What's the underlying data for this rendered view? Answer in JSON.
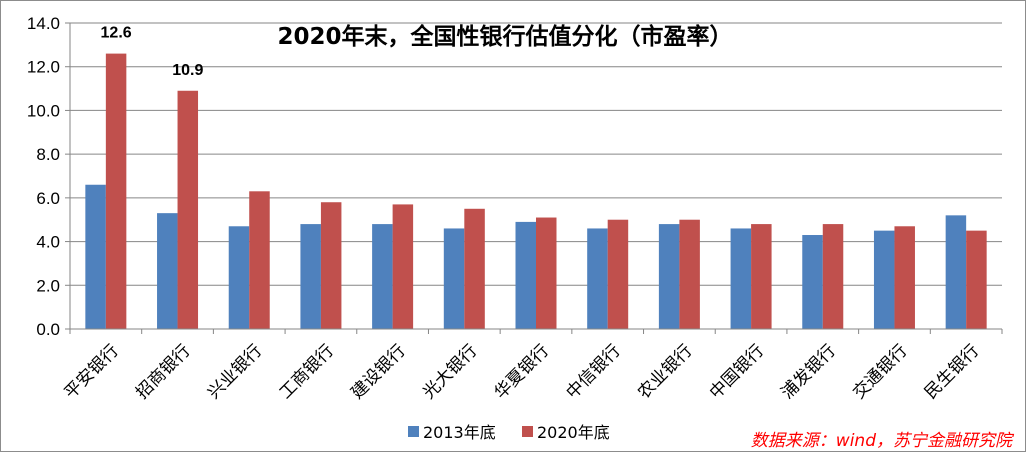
{
  "chart_data": {
    "type": "bar",
    "title": "2020年末，全国性银行估值分化（市盈率）",
    "categories": [
      "平安银行",
      "招商银行",
      "兴业银行",
      "工商银行",
      "建设银行",
      "光大银行",
      "华夏银行",
      "中信银行",
      "农业银行",
      "中国银行",
      "浦发银行",
      "交通银行",
      "民生银行"
    ],
    "series": [
      {
        "name": "2013年底",
        "color": "#4f81bd",
        "values": [
          6.6,
          5.3,
          4.7,
          4.8,
          4.8,
          4.6,
          4.9,
          4.6,
          4.8,
          4.6,
          4.3,
          4.5,
          5.2
        ]
      },
      {
        "name": "2020年底",
        "color": "#c0504d",
        "values": [
          12.6,
          10.9,
          6.3,
          5.8,
          5.7,
          5.5,
          5.1,
          5.0,
          5.0,
          4.8,
          4.8,
          4.7,
          4.5
        ]
      }
    ],
    "data_labels": [
      {
        "series": 1,
        "index": 0,
        "text": "12.6"
      },
      {
        "series": 1,
        "index": 1,
        "text": "10.9"
      }
    ],
    "ylim": [
      0,
      14
    ],
    "yticks": [
      "0.0",
      "2.0",
      "4.0",
      "6.0",
      "8.0",
      "10.0",
      "12.0",
      "14.0"
    ],
    "grid": true,
    "legend_position": "bottom",
    "source_note": "数据来源：wind，苏宁金融研究院"
  }
}
